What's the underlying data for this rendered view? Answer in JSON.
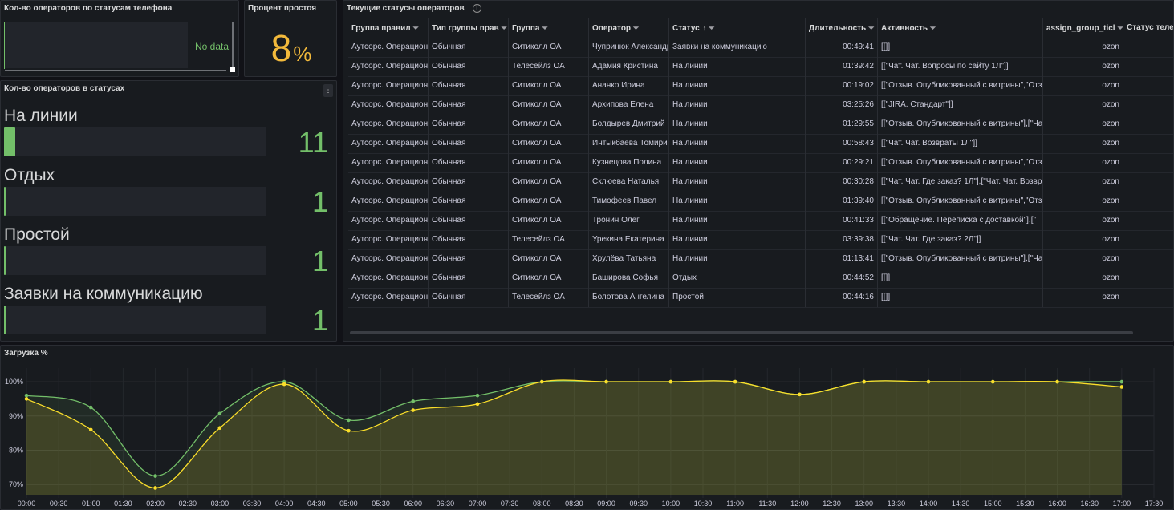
{
  "panels": {
    "phone_status": {
      "title": "Кол-во операторов по статусам телефона",
      "no_data": "No data"
    },
    "idle_percent": {
      "title": "Процент простоя",
      "value": "8",
      "unit": "%"
    },
    "status_counts": {
      "title": "Кол-во операторов в статусах",
      "menu_icon": "⋮",
      "max": 11,
      "items": [
        {
          "label": "На линии",
          "value": 11,
          "value_text": "11"
        },
        {
          "label": "Отдых",
          "value": 1,
          "value_text": "1"
        },
        {
          "label": "Простой",
          "value": 1,
          "value_text": "1"
        },
        {
          "label": "Заявки на коммуникацию",
          "value": 1,
          "value_text": "1"
        }
      ]
    },
    "operators_table": {
      "title": "Текущие статусы операторов",
      "info_icon": "i",
      "filter_icon": "⏷",
      "sort_icon": "↑",
      "columns": [
        "Группа правил",
        "Тип группы прав",
        "Группа",
        "Оператор",
        "Статус",
        "Длительность",
        "Активность",
        "assign_group_ticl",
        "Статус теле"
      ],
      "rows": [
        [
          "Аутсорс. Операционн",
          "Обычная",
          "Ситиколл ОА",
          "Чупринюк Александр",
          "Заявки на коммуникацию",
          "00:49:41",
          "[[]]",
          "ozon",
          ""
        ],
        [
          "Аутсорс. Операционн",
          "Обычная",
          "Телесейлз ОА",
          "Адамия Кристина",
          "На линии",
          "01:39:42",
          "[[\"Чат. Чат. Вопросы по сайту 1Л\"]]",
          "ozon",
          ""
        ],
        [
          "Аутсорс. Операционн",
          "Обычная",
          "Ситиколл ОА",
          "Ананко Ирина",
          "На линии",
          "00:19:02",
          "[[\"Отзыв. Опубликованный с витрины\",\"Отз",
          "ozon",
          ""
        ],
        [
          "Аутсорс. Операционн",
          "Обычная",
          "Ситиколл ОА",
          "Архипова Елена",
          "На линии",
          "03:25:26",
          "[[\"JIRA. Стандарт\"]]",
          "ozon",
          ""
        ],
        [
          "Аутсорс. Операционн",
          "Обычная",
          "Ситиколл ОА",
          "Болдырев Дмитрий",
          "На линии",
          "01:29:55",
          "[[\"Отзыв. Опубликованный с витрины\"],[\"Ча",
          "ozon",
          ""
        ],
        [
          "Аутсорс. Операционн",
          "Обычная",
          "Ситиколл ОА",
          "Интыкбаева Томирис",
          "На линии",
          "00:58:43",
          "[[\"Чат. Чат. Возвраты 1Л\"]]",
          "ozon",
          ""
        ],
        [
          "Аутсорс. Операционн",
          "Обычная",
          "Ситиколл ОА",
          "Кузнецова Полина",
          "На линии",
          "00:29:21",
          "[[\"Отзыв. Опубликованный с витрины\",\"Отз",
          "ozon",
          ""
        ],
        [
          "Аутсорс. Операционн",
          "Обычная",
          "Ситиколл ОА",
          "Склюева Наталья",
          "На линии",
          "00:30:28",
          "[[\"Чат. Чат. Где заказ? 1Л\"],[\"Чат. Чат. Возвр",
          "ozon",
          ""
        ],
        [
          "Аутсорс. Операционн",
          "Обычная",
          "Ситиколл ОА",
          "Тимофеев Павел",
          "На линии",
          "01:39:40",
          "[[\"Отзыв. Опубликованный с витрины\",\"Отз",
          "ozon",
          ""
        ],
        [
          "Аутсорс. Операционн",
          "Обычная",
          "Ситиколл ОА",
          "Тронин Олег",
          "На линии",
          "00:41:33",
          "[[\"Обращение. Переписка с доставкой\"],[\"",
          "ozon",
          ""
        ],
        [
          "Аутсорс. Операционн",
          "Обычная",
          "Телесейлз ОА",
          "Урекина Екатерина",
          "На линии",
          "03:39:38",
          "[[\"Чат. Чат. Где заказ? 2Л\"]]",
          "ozon",
          ""
        ],
        [
          "Аутсорс. Операционн",
          "Обычная",
          "Ситиколл ОА",
          "Хрулёва Татьяна",
          "На линии",
          "01:13:41",
          "[[\"Отзыв. Опубликованный с витрины\"],[\"Ча",
          "ozon",
          ""
        ],
        [
          "Аутсорс. Операционн",
          "Обычная",
          "Ситиколл ОА",
          "Баширова Софья",
          "Отдых",
          "00:44:52",
          "[[]]",
          "ozon",
          ""
        ],
        [
          "Аутсорс. Операционн",
          "Обычная",
          "Телесейлз ОА",
          "Болотова Ангелина",
          "Простой",
          "00:44:16",
          "[[]]",
          "ozon",
          ""
        ]
      ]
    },
    "load_chart": {
      "title": "Загрузка %"
    }
  },
  "colors": {
    "green": "#73bf69",
    "yellow": "#fade2a",
    "orange": "#f2b93b",
    "panel": "#181b1f",
    "bg": "#111217"
  },
  "chart_data": {
    "type": "line",
    "title": "Загрузка %",
    "y_tick_labels": [
      "70%",
      "80%",
      "90%",
      "100%"
    ],
    "y_ticks": [
      70,
      80,
      90,
      100
    ],
    "ylim": [
      67,
      104
    ],
    "x_tick_labels": [
      "00:00",
      "00:30",
      "01:00",
      "01:30",
      "02:00",
      "02:30",
      "03:00",
      "03:30",
      "04:00",
      "04:30",
      "05:00",
      "05:30",
      "06:00",
      "06:30",
      "07:00",
      "07:30",
      "08:00",
      "08:30",
      "09:00",
      "09:30",
      "10:00",
      "10:30",
      "11:00",
      "11:30",
      "12:00",
      "12:30",
      "13:00",
      "13:30",
      "14:00",
      "14:30",
      "15:00",
      "15:30",
      "16:00",
      "16:30",
      "17:00",
      "17:30"
    ],
    "x_hours": [
      0,
      1,
      2,
      3,
      4,
      5,
      6,
      7,
      8,
      9,
      10,
      11,
      12,
      13,
      14,
      15,
      16,
      17
    ],
    "xlim": [
      0,
      17.5
    ],
    "grid": true,
    "series": [
      {
        "color": "#73bf69",
        "values": [
          96,
          92.5,
          72.5,
          90.7,
          100,
          88.8,
          94.3,
          96,
          100,
          100,
          100,
          100,
          96.3,
          100,
          100,
          100,
          100,
          100
        ]
      },
      {
        "color": "#fade2a",
        "values": [
          95,
          86,
          69,
          86.5,
          99.3,
          85.7,
          91.7,
          93.5,
          100,
          100,
          100,
          100,
          96.3,
          100,
          100,
          100,
          100,
          98.5
        ]
      }
    ]
  }
}
